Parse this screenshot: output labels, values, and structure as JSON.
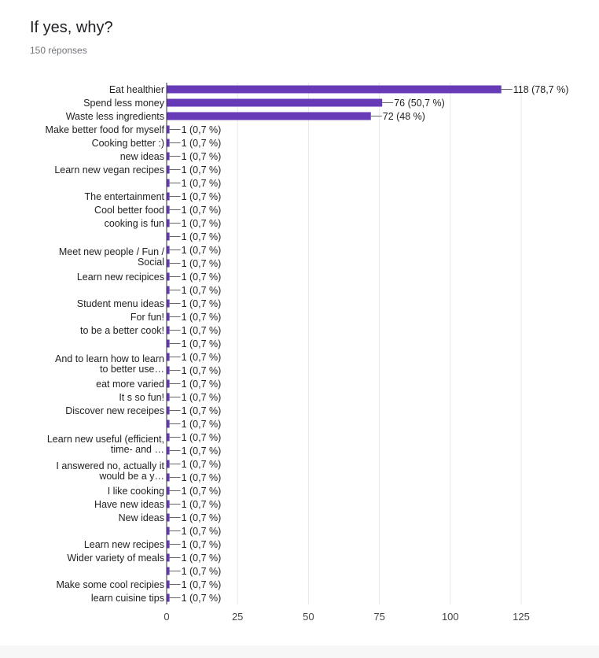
{
  "header": {
    "title": "If yes, why?",
    "responses": "150 réponses"
  },
  "colors": {
    "bar": "#673ab7",
    "grid": "#e8e8e8",
    "axis": "#333333",
    "text": "#222222",
    "tick": "#444444"
  },
  "chart_data": {
    "type": "bar",
    "orientation": "horizontal",
    "title": "If yes, why?",
    "xlim": [
      0,
      125
    ],
    "xticks": [
      0,
      25,
      50,
      75,
      100,
      125
    ],
    "grid": true,
    "categories": [
      [
        "Eat healthier"
      ],
      [
        "Spend less money"
      ],
      [
        "Waste less ingredients"
      ],
      [
        "Make better food for myself"
      ],
      [
        "Cooking better :)"
      ],
      [
        "new ideas"
      ],
      [
        "Learn new vegan recipes"
      ],
      [],
      [
        "The entertainment"
      ],
      [
        "Cool better food"
      ],
      [
        "cooking is fun"
      ],
      [],
      [
        "Meet new people / Fun /",
        "Social"
      ],
      [],
      [
        "Learn new recipices"
      ],
      [],
      [
        "Student menu ideas"
      ],
      [
        "For fun!"
      ],
      [
        "to be a better cook!"
      ],
      [],
      [
        "And to learn how to learn",
        "to better use…"
      ],
      [],
      [
        "eat more varied"
      ],
      [
        "It s so fun!"
      ],
      [
        "Discover new receipes"
      ],
      [],
      [
        "Learn new useful (efficient,",
        "time- and …"
      ],
      [],
      [
        "I answered no, actually it",
        "would be a y…"
      ],
      [],
      [
        "I like cooking"
      ],
      [
        "Have new ideas"
      ],
      [
        "New ideas"
      ],
      [],
      [
        "Learn new recipes"
      ],
      [
        "Wider variety of meals"
      ],
      [],
      [
        "Make some cool recipies"
      ],
      [
        "learn cuisine tips"
      ]
    ],
    "values": [
      118,
      76,
      72,
      1,
      1,
      1,
      1,
      1,
      1,
      1,
      1,
      1,
      1,
      1,
      1,
      1,
      1,
      1,
      1,
      1,
      1,
      1,
      1,
      1,
      1,
      1,
      1,
      1,
      1,
      1,
      1,
      1,
      1,
      1,
      1,
      1,
      1,
      1,
      1
    ],
    "value_labels": [
      "118 (78,7 %)",
      "76 (50,7 %)",
      "72 (48 %)",
      "1 (0,7 %)",
      "1 (0,7 %)",
      "1 (0,7 %)",
      "1 (0,7 %)",
      "1 (0,7 %)",
      "1 (0,7 %)",
      "1 (0,7 %)",
      "1 (0,7 %)",
      "1 (0,7 %)",
      "1 (0,7 %)",
      "1 (0,7 %)",
      "1 (0,7 %)",
      "1 (0,7 %)",
      "1 (0,7 %)",
      "1 (0,7 %)",
      "1 (0,7 %)",
      "1 (0,7 %)",
      "1 (0,7 %)",
      "1 (0,7 %)",
      "1 (0,7 %)",
      "1 (0,7 %)",
      "1 (0,7 %)",
      "1 (0,7 %)",
      "1 (0,7 %)",
      "1 (0,7 %)",
      "1 (0,7 %)",
      "1 (0,7 %)",
      "1 (0,7 %)",
      "1 (0,7 %)",
      "1 (0,7 %)",
      "1 (0,7 %)",
      "1 (0,7 %)",
      "1 (0,7 %)",
      "1 (0,7 %)",
      "1 (0,7 %)",
      "1 (0,7 %)"
    ]
  }
}
